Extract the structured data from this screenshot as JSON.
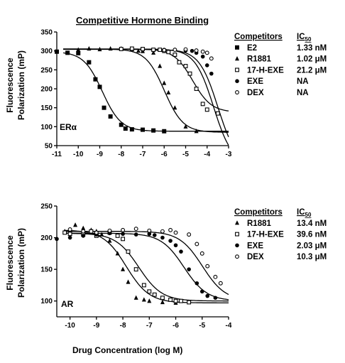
{
  "chart_data": [
    {
      "type": "scatter",
      "title": "Competitive Hormone Binding",
      "panel_label": "ERα",
      "xlabel": "",
      "ylabel_lines": [
        "Fluorescence",
        "Polarization (mP)"
      ],
      "xlim": [
        -11,
        -3
      ],
      "ylim": [
        50,
        350
      ],
      "x_ticks": [
        -11,
        -10,
        -9,
        -8,
        -7,
        -6,
        -5,
        -4,
        -3
      ],
      "y_ticks": [
        50,
        100,
        150,
        200,
        250,
        300,
        350
      ],
      "legend_header": "Competitors",
      "ic50_header_base": "IC",
      "ic50_header_sub": "50",
      "series": [
        {
          "name": "E2",
          "marker": "filled-square",
          "ic50": "1.33 nM",
          "top": 298,
          "bottom": 88,
          "logic50": -8.88,
          "points": [
            [
              -11,
              298
            ],
            [
              -10.5,
              295
            ],
            [
              -10,
              294
            ],
            [
              -9.5,
              270
            ],
            [
              -9.2,
              225
            ],
            [
              -9,
              205
            ],
            [
              -8.8,
              150
            ],
            [
              -8.5,
              127
            ],
            [
              -8,
              105
            ],
            [
              -7.8,
              95
            ],
            [
              -7.5,
              93
            ],
            [
              -7,
              92
            ],
            [
              -6.5,
              90
            ],
            [
              -6,
              88
            ]
          ]
        },
        {
          "name": "R1881",
          "marker": "filled-triangle",
          "ic50": "1.02 μM",
          "top": 305,
          "bottom": 85,
          "logic50": -5.99,
          "points": [
            [
              -10,
              303
            ],
            [
              -9.5,
              306
            ],
            [
              -9,
              304
            ],
            [
              -8.5,
              306
            ],
            [
              -8,
              306
            ],
            [
              -7.5,
              304
            ],
            [
              -7.2,
              300
            ],
            [
              -7,
              299
            ],
            [
              -6.5,
              295
            ],
            [
              -6.2,
              260
            ],
            [
              -6,
              215
            ],
            [
              -5.8,
              190
            ],
            [
              -5.5,
              150
            ],
            [
              -5,
              100
            ],
            [
              -4.5,
              88
            ]
          ]
        },
        {
          "name": "17-H-EXE",
          "marker": "open-square",
          "ic50": "21.2 μM",
          "top": 305,
          "bottom": 138,
          "logic50": -4.67,
          "points": [
            [
              -8,
              305
            ],
            [
              -7.5,
              306
            ],
            [
              -7,
              305
            ],
            [
              -6.5,
              303
            ],
            [
              -6.2,
              303
            ],
            [
              -6,
              300
            ],
            [
              -5.8,
              297
            ],
            [
              -5.5,
              290
            ],
            [
              -5.3,
              270
            ],
            [
              -5,
              260
            ],
            [
              -4.8,
              240
            ],
            [
              -4.5,
              200
            ],
            [
              -4.2,
              160
            ],
            [
              -4,
              145
            ],
            [
              -3.5,
              135
            ]
          ]
        },
        {
          "name": "EXE",
          "marker": "filled-circle",
          "ic50": "NA",
          "top": 305,
          "bottom": 0,
          "logic50": -3.7,
          "points": [
            [
              -6,
              303
            ],
            [
              -5.5,
              303
            ],
            [
              -5,
              301
            ],
            [
              -4.7,
              300
            ],
            [
              -4.5,
              295
            ],
            [
              -4.2,
              285
            ],
            [
              -4,
              262
            ],
            [
              -3.8,
              240
            ]
          ]
        },
        {
          "name": "DEX",
          "marker": "open-circle",
          "ic50": "NA",
          "top": 304,
          "bottom": 0,
          "logic50": -3.5,
          "points": [
            [
              -6,
              302
            ],
            [
              -5.5,
              303
            ],
            [
              -5,
              304
            ],
            [
              -4.5,
              301
            ],
            [
              -4.2,
              298
            ],
            [
              -4,
              295
            ],
            [
              -3.8,
              280
            ]
          ]
        }
      ]
    },
    {
      "type": "scatter",
      "panel_label": "AR",
      "xlabel": "Drug Concentration (log M)",
      "ylabel_lines": [
        "Fluorescence",
        "Polarization (mP)"
      ],
      "xlim": [
        -10.5,
        -4
      ],
      "ylim": [
        75,
        250
      ],
      "x_ticks": [
        -10,
        -9,
        -8,
        -7,
        -6,
        -5,
        -4
      ],
      "y_ticks": [
        100,
        150,
        200,
        250
      ],
      "legend_header": "Competitors",
      "ic50_header_base": "IC",
      "ic50_header_sub": "50",
      "series": [
        {
          "name": "R1881",
          "marker": "filled-triangle",
          "ic50": "13.4 nM",
          "top": 212,
          "bottom": 97,
          "logic50": -7.87,
          "points": [
            [
              -10.2,
              210
            ],
            [
              -10,
              212
            ],
            [
              -9.8,
              220
            ],
            [
              -9.5,
              215
            ],
            [
              -9.2,
              212
            ],
            [
              -9,
              210
            ],
            [
              -8.8,
              205
            ],
            [
              -8.5,
              195
            ],
            [
              -8.2,
              175
            ],
            [
              -8,
              150
            ],
            [
              -7.8,
              130
            ],
            [
              -7.5,
              105
            ],
            [
              -7.2,
              102
            ],
            [
              -7,
              100
            ],
            [
              -6.5,
              98
            ],
            [
              -6,
              97
            ]
          ]
        },
        {
          "name": "17-H-EXE",
          "marker": "open-square",
          "ic50": "39.6 nM",
          "top": 207,
          "bottom": 100,
          "logic50": -7.4,
          "points": [
            [
              -10.2,
              208
            ],
            [
              -10,
              206
            ],
            [
              -9.5,
              205
            ],
            [
              -9.2,
              210
            ],
            [
              -9,
              203
            ],
            [
              -8.5,
              208
            ],
            [
              -8.2,
              203
            ],
            [
              -8,
              198
            ],
            [
              -7.8,
              178
            ],
            [
              -7.5,
              150
            ],
            [
              -7.2,
              125
            ],
            [
              -7,
              115
            ],
            [
              -6.8,
              110
            ],
            [
              -6.5,
              105
            ],
            [
              -6.2,
              102
            ],
            [
              -6,
              100
            ],
            [
              -5.8,
              100
            ],
            [
              -5.5,
              98
            ]
          ]
        },
        {
          "name": "EXE",
          "marker": "filled-circle",
          "ic50": "2.03 μM",
          "top": 207,
          "bottom": 100,
          "logic50": -5.69,
          "points": [
            [
              -10.5,
              198
            ],
            [
              -10,
              200
            ],
            [
              -9.5,
              203
            ],
            [
              -9,
              205
            ],
            [
              -8.5,
              207
            ],
            [
              -8,
              206
            ],
            [
              -7.5,
              205
            ],
            [
              -7,
              206
            ],
            [
              -6.8,
              204
            ],
            [
              -6.5,
              200
            ],
            [
              -6.2,
              195
            ],
            [
              -6,
              188
            ],
            [
              -5.8,
              178
            ],
            [
              -5.5,
              150
            ],
            [
              -5.2,
              128
            ],
            [
              -5,
              115
            ],
            [
              -4.8,
              108
            ],
            [
              -4.5,
              105
            ]
          ]
        },
        {
          "name": "DEX",
          "marker": "open-circle",
          "ic50": "10.3 μM",
          "top": 210,
          "bottom": 100,
          "logic50": -4.99,
          "points": [
            [
              -10,
              213
            ],
            [
              -9.5,
              210
            ],
            [
              -9,
              208
            ],
            [
              -8.5,
              211
            ],
            [
              -8,
              212
            ],
            [
              -7.5,
              214
            ],
            [
              -7,
              211
            ],
            [
              -6.5,
              210
            ],
            [
              -6.2,
              212
            ],
            [
              -6,
              208
            ],
            [
              -5.5,
              205
            ],
            [
              -5.2,
              190
            ],
            [
              -5,
              175
            ],
            [
              -4.8,
              155
            ],
            [
              -4.5,
              138
            ],
            [
              -4.3,
              128
            ]
          ]
        }
      ]
    }
  ]
}
